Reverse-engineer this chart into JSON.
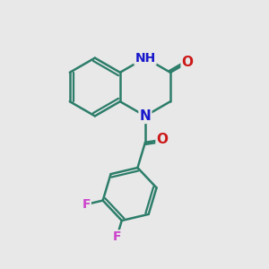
{
  "background_color": "#e8e8e8",
  "bond_color": "#2d7d6a",
  "bond_width": 1.8,
  "N_color": "#1818cc",
  "O_color": "#cc1818",
  "F_color": "#cc44cc",
  "font_size_atom": 11,
  "font_size_small": 9,
  "xlim": [
    0,
    10
  ],
  "ylim": [
    0,
    10
  ]
}
